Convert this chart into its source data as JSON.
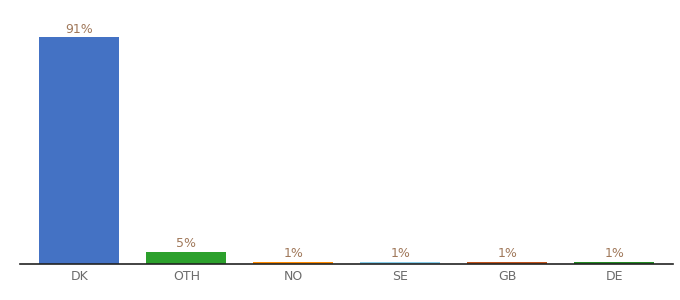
{
  "categories": [
    "DK",
    "OTH",
    "NO",
    "SE",
    "GB",
    "DE"
  ],
  "values": [
    91,
    5,
    1,
    1,
    1,
    1
  ],
  "labels": [
    "91%",
    "5%",
    "1%",
    "1%",
    "1%",
    "1%"
  ],
  "bar_colors": [
    "#4472c4",
    "#2ca02c",
    "#ff8c00",
    "#87ceeb",
    "#c0531a",
    "#228b22"
  ],
  "background_color": "#ffffff",
  "label_color": "#a0785a",
  "label_fontsize": 9,
  "tick_fontsize": 9,
  "ylim": [
    0,
    100
  ]
}
